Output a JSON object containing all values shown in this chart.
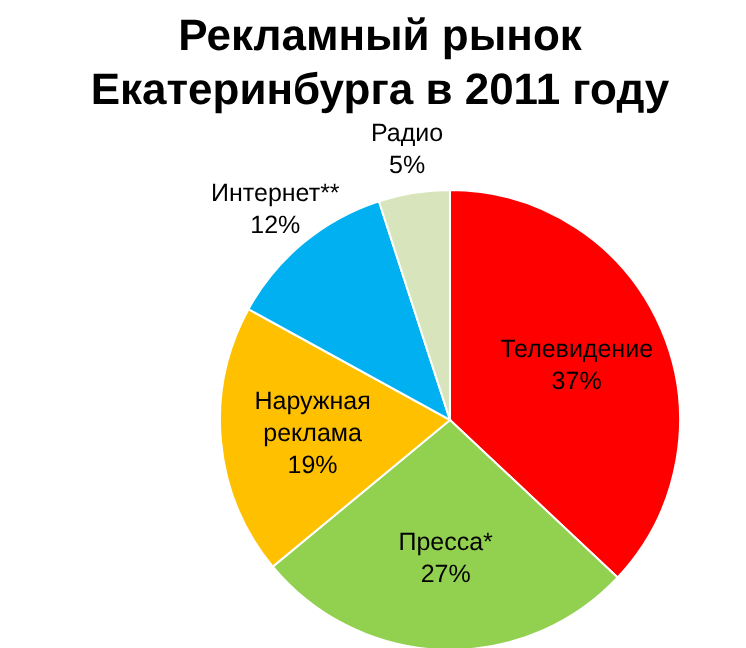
{
  "chart_data": {
    "type": "pie",
    "title": "Рекламный рынок Екатеринбурга в 2011 году",
    "categories": [
      "Телевидение",
      "Пресса*",
      "Наружная реклама",
      "Интернет**",
      "Радио"
    ],
    "values": [
      37,
      27,
      19,
      12,
      5
    ],
    "value_labels": [
      "37%",
      "27%",
      "19%",
      "12%",
      "5%"
    ],
    "colors": [
      "#ff0000",
      "#92d050",
      "#ffc000",
      "#00b0f0",
      "#d8e4bc"
    ],
    "legend": false
  }
}
